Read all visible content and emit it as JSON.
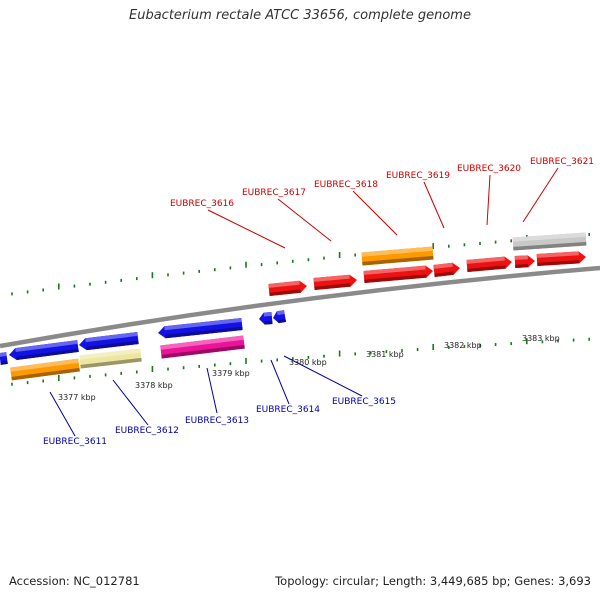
{
  "title": "Eubacterium rectale ATCC 33656, complete genome",
  "footer": {
    "accession": "Accession: NC_012781",
    "summary": "Topology: circular; Length: 3,449,685 bp; Genes: 3,693"
  },
  "colors": {
    "backbone": "#8a8a8a",
    "tick": "#1a7a1a",
    "forward_label": "#cc0000",
    "reverse_label": "#0000aa",
    "blue": "#1212e6",
    "red": "#ee1111",
    "orange": "#ff9900",
    "khaki": "#eee6a0",
    "magenta": "#ee1199",
    "grey": "#c8c8c8"
  },
  "kbp_labels": [
    "3377 kbp",
    "3378 kbp",
    "3379 kbp",
    "3380 kbp",
    "3381 kbp",
    "3382 kbp",
    "3383 kbp"
  ],
  "reverse_genes": [
    "EUBREC_3611",
    "EUBREC_3612",
    "EUBREC_3613",
    "EUBREC_3614",
    "EUBREC_3615"
  ],
  "forward_genes": [
    "EUBREC_3616",
    "EUBREC_3617",
    "EUBREC_3618",
    "EUBREC_3619",
    "EUBREC_3620",
    "EUBREC_3621"
  ]
}
